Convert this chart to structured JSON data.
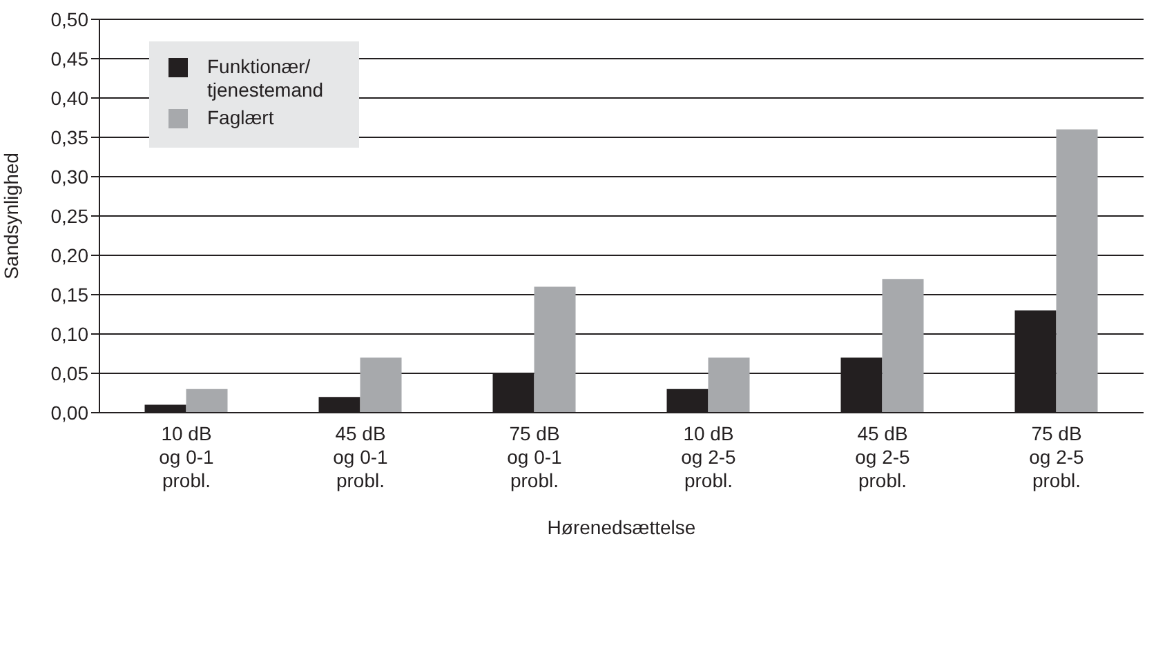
{
  "chart_data": {
    "type": "bar",
    "xlabel": "Hørenedsættelse",
    "ylabel": "Sandsynlighed",
    "categories": [
      "10 dB\nog 0-1\nprobl.",
      "45 dB\nog 0-1\nprobl.",
      "75 dB\nog 0-1\nprobl.",
      "10 dB\nog 2-5\nprobl.",
      "45 dB\nog 2-5\nprobl.",
      "75 dB\nog 2-5\nprobl."
    ],
    "series": [
      {
        "name": "Funktionær/\ntjenestemand",
        "color": "#231f20",
        "values": [
          0.01,
          0.02,
          0.05,
          0.03,
          0.07,
          0.13
        ]
      },
      {
        "name": "Faglært",
        "color": "#a7a9ac",
        "values": [
          0.03,
          0.07,
          0.16,
          0.07,
          0.17,
          0.36
        ]
      }
    ],
    "ylim": [
      0,
      0.5
    ],
    "yticks": [
      {
        "value": 0,
        "label": "0,00"
      },
      {
        "value": 0.05,
        "label": "0,05"
      },
      {
        "value": 0.1,
        "label": "0,10"
      },
      {
        "value": 0.15,
        "label": "0,15"
      },
      {
        "value": 0.2,
        "label": "0,20"
      },
      {
        "value": 0.25,
        "label": "0,25"
      },
      {
        "value": 0.3,
        "label": "0,30"
      },
      {
        "value": 0.35,
        "label": "0,35"
      },
      {
        "value": 0.4,
        "label": "0,40"
      },
      {
        "value": 0.45,
        "label": "0,45"
      },
      {
        "value": 0.5,
        "label": "0,50"
      }
    ],
    "grid": "y",
    "legend": "top left"
  }
}
